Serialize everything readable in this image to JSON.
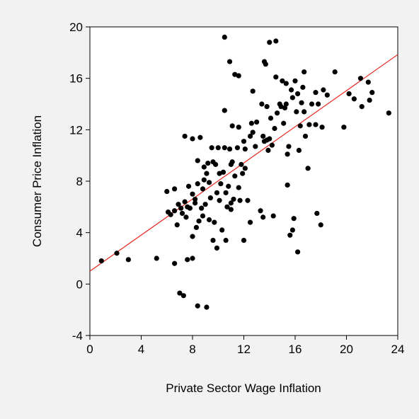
{
  "chart_data": {
    "type": "scatter",
    "title": "",
    "xlabel": "Private Sector Wage Inflation",
    "ylabel": "Consumer Price Inflation",
    "xlim": [
      0,
      24
    ],
    "ylim": [
      -4,
      20
    ],
    "xticks": [
      0,
      4,
      8,
      12,
      16,
      20,
      24
    ],
    "yticks": [
      -4,
      0,
      4,
      8,
      12,
      16,
      20
    ],
    "xtick_labels": [
      "0",
      "4",
      "8",
      "12",
      "16",
      "20",
      "24"
    ],
    "ytick_labels": [
      "-4",
      "0",
      "4",
      "8",
      "12",
      "16",
      "20"
    ],
    "grid": false,
    "legend": "none",
    "colors": {
      "points": "#000000",
      "fit_line": "#e8231c",
      "plot_bg": "#ffffff",
      "page_bg": "#f2f2f2"
    },
    "fit_line": {
      "x": [
        0,
        24
      ],
      "y": [
        1.0,
        17.85
      ]
    },
    "points": [
      {
        "x": 0.9,
        "y": 1.8
      },
      {
        "x": 2.1,
        "y": 2.4
      },
      {
        "x": 3.0,
        "y": 1.9
      },
      {
        "x": 5.2,
        "y": 2.0
      },
      {
        "x": 6.6,
        "y": 1.6
      },
      {
        "x": 7.0,
        "y": -0.7
      },
      {
        "x": 7.3,
        "y": -0.9
      },
      {
        "x": 7.6,
        "y": 1.9
      },
      {
        "x": 8.0,
        "y": 2.0
      },
      {
        "x": 8.4,
        "y": -1.7
      },
      {
        "x": 9.1,
        "y": -1.8
      },
      {
        "x": 9.6,
        "y": 3.4
      },
      {
        "x": 9.9,
        "y": 2.8
      },
      {
        "x": 10.6,
        "y": 3.4
      },
      {
        "x": 12.0,
        "y": 3.4
      },
      {
        "x": 16.2,
        "y": 2.5
      },
      {
        "x": 6.0,
        "y": 7.2
      },
      {
        "x": 6.1,
        "y": 5.6
      },
      {
        "x": 6.3,
        "y": 5.4
      },
      {
        "x": 6.6,
        "y": 5.7
      },
      {
        "x": 6.6,
        "y": 7.4
      },
      {
        "x": 6.8,
        "y": 4.6
      },
      {
        "x": 6.9,
        "y": 6.2
      },
      {
        "x": 7.1,
        "y": 5.9
      },
      {
        "x": 7.2,
        "y": 5.5
      },
      {
        "x": 7.4,
        "y": 6.4
      },
      {
        "x": 7.4,
        "y": 11.5
      },
      {
        "x": 7.5,
        "y": 5.2
      },
      {
        "x": 7.6,
        "y": 6.0
      },
      {
        "x": 7.7,
        "y": 7.6
      },
      {
        "x": 7.8,
        "y": 5.9
      },
      {
        "x": 8.0,
        "y": 7.0
      },
      {
        "x": 8.0,
        "y": 11.3
      },
      {
        "x": 8.0,
        "y": 3.7
      },
      {
        "x": 8.2,
        "y": 6.3
      },
      {
        "x": 8.2,
        "y": 6.6
      },
      {
        "x": 8.3,
        "y": 4.4
      },
      {
        "x": 8.4,
        "y": 7.8
      },
      {
        "x": 8.4,
        "y": 9.6
      },
      {
        "x": 8.5,
        "y": 4.9
      },
      {
        "x": 8.6,
        "y": 11.4
      },
      {
        "x": 8.7,
        "y": 5.9
      },
      {
        "x": 8.8,
        "y": 7.4
      },
      {
        "x": 8.8,
        "y": 5.3
      },
      {
        "x": 8.9,
        "y": 8.1
      },
      {
        "x": 8.9,
        "y": 9.1
      },
      {
        "x": 9.0,
        "y": 6.2
      },
      {
        "x": 9.1,
        "y": 8.6
      },
      {
        "x": 9.2,
        "y": 9.4
      },
      {
        "x": 9.3,
        "y": 5.0
      },
      {
        "x": 9.3,
        "y": 7.9
      },
      {
        "x": 9.4,
        "y": 6.7
      },
      {
        "x": 9.5,
        "y": 10.6
      },
      {
        "x": 9.6,
        "y": 9.5
      },
      {
        "x": 9.7,
        "y": 4.8
      },
      {
        "x": 9.8,
        "y": 9.3
      },
      {
        "x": 9.9,
        "y": 7.1
      },
      {
        "x": 10.0,
        "y": 10.6
      },
      {
        "x": 10.1,
        "y": 6.5
      },
      {
        "x": 10.1,
        "y": 8.6
      },
      {
        "x": 10.2,
        "y": 7.8
      },
      {
        "x": 10.3,
        "y": 4.2
      },
      {
        "x": 10.4,
        "y": 8.7
      },
      {
        "x": 10.5,
        "y": 10.6
      },
      {
        "x": 10.5,
        "y": 13.5
      },
      {
        "x": 10.6,
        "y": 7.1
      },
      {
        "x": 10.7,
        "y": 6.0
      },
      {
        "x": 10.8,
        "y": 7.6
      },
      {
        "x": 10.9,
        "y": 10.5
      },
      {
        "x": 11.0,
        "y": 6.3
      },
      {
        "x": 11.0,
        "y": 9.3
      },
      {
        "x": 11.0,
        "y": 5.8
      },
      {
        "x": 11.1,
        "y": 9.5
      },
      {
        "x": 11.1,
        "y": 12.3
      },
      {
        "x": 11.2,
        "y": 6.6
      },
      {
        "x": 11.3,
        "y": 8.4
      },
      {
        "x": 11.5,
        "y": 10.6
      },
      {
        "x": 11.6,
        "y": 12.2
      },
      {
        "x": 11.6,
        "y": 7.5
      },
      {
        "x": 11.7,
        "y": 6.5
      },
      {
        "x": 11.8,
        "y": 9.3
      },
      {
        "x": 11.9,
        "y": 8.6
      },
      {
        "x": 12.0,
        "y": 11.1
      },
      {
        "x": 12.1,
        "y": 9.0
      },
      {
        "x": 12.1,
        "y": 10.5
      },
      {
        "x": 12.3,
        "y": 6.5
      },
      {
        "x": 12.5,
        "y": 4.8
      },
      {
        "x": 12.5,
        "y": 11.5
      },
      {
        "x": 12.6,
        "y": 12.5
      },
      {
        "x": 12.7,
        "y": 11.8
      },
      {
        "x": 12.9,
        "y": 10.7
      },
      {
        "x": 13.0,
        "y": 12.6
      },
      {
        "x": 13.3,
        "y": 5.7
      },
      {
        "x": 13.5,
        "y": 5.2
      },
      {
        "x": 13.5,
        "y": 11.5
      },
      {
        "x": 13.6,
        "y": 17.3
      },
      {
        "x": 13.6,
        "y": 11.1
      },
      {
        "x": 13.8,
        "y": 11.2
      },
      {
        "x": 13.9,
        "y": 10.4
      },
      {
        "x": 14.0,
        "y": 11.3
      },
      {
        "x": 14.1,
        "y": 12.9
      },
      {
        "x": 14.2,
        "y": 10.8
      },
      {
        "x": 14.3,
        "y": 5.3
      },
      {
        "x": 14.4,
        "y": 12.1
      },
      {
        "x": 14.5,
        "y": 16.1
      },
      {
        "x": 14.6,
        "y": 13.3
      },
      {
        "x": 14.8,
        "y": 14.0
      },
      {
        "x": 15.0,
        "y": 15.8
      },
      {
        "x": 15.1,
        "y": 12.5
      },
      {
        "x": 15.2,
        "y": 13.7
      },
      {
        "x": 15.3,
        "y": 14.0
      },
      {
        "x": 15.4,
        "y": 7.7
      },
      {
        "x": 15.4,
        "y": 10.1
      },
      {
        "x": 15.5,
        "y": 10.7
      },
      {
        "x": 15.6,
        "y": 3.8
      },
      {
        "x": 15.7,
        "y": 15.1
      },
      {
        "x": 15.8,
        "y": 14.5
      },
      {
        "x": 15.8,
        "y": 4.2
      },
      {
        "x": 15.9,
        "y": 5.1
      },
      {
        "x": 16.0,
        "y": 15.8
      },
      {
        "x": 16.1,
        "y": 13.4
      },
      {
        "x": 16.2,
        "y": 14.8
      },
      {
        "x": 16.3,
        "y": 10.4
      },
      {
        "x": 16.4,
        "y": 12.3
      },
      {
        "x": 16.5,
        "y": 14.1
      },
      {
        "x": 16.6,
        "y": 15.3
      },
      {
        "x": 16.7,
        "y": 13.4
      },
      {
        "x": 16.7,
        "y": 16.5
      },
      {
        "x": 16.8,
        "y": 11.5
      },
      {
        "x": 17.0,
        "y": 9.0
      },
      {
        "x": 17.1,
        "y": 12.4
      },
      {
        "x": 17.3,
        "y": 14.0
      },
      {
        "x": 17.6,
        "y": 14.9
      },
      {
        "x": 17.6,
        "y": 12.4
      },
      {
        "x": 17.7,
        "y": 5.5
      },
      {
        "x": 17.8,
        "y": 14.0
      },
      {
        "x": 18.0,
        "y": 4.6
      },
      {
        "x": 18.1,
        "y": 12.2
      },
      {
        "x": 18.2,
        "y": 15.1
      },
      {
        "x": 18.5,
        "y": 14.7
      },
      {
        "x": 19.1,
        "y": 16.5
      },
      {
        "x": 19.8,
        "y": 12.2
      },
      {
        "x": 20.2,
        "y": 14.8
      },
      {
        "x": 20.6,
        "y": 14.4
      },
      {
        "x": 21.1,
        "y": 16.0
      },
      {
        "x": 21.2,
        "y": 13.8
      },
      {
        "x": 21.7,
        "y": 15.7
      },
      {
        "x": 21.8,
        "y": 14.3
      },
      {
        "x": 22.0,
        "y": 14.9
      },
      {
        "x": 23.3,
        "y": 13.3
      },
      {
        "x": 10.5,
        "y": 19.2
      },
      {
        "x": 10.9,
        "y": 17.3
      },
      {
        "x": 11.3,
        "y": 16.3
      },
      {
        "x": 11.6,
        "y": 16.2
      },
      {
        "x": 13.7,
        "y": 17.1
      },
      {
        "x": 14.0,
        "y": 18.8
      },
      {
        "x": 14.5,
        "y": 18.9
      },
      {
        "x": 12.7,
        "y": 15.0
      },
      {
        "x": 13.4,
        "y": 14.0
      },
      {
        "x": 13.8,
        "y": 13.8
      },
      {
        "x": 14.9,
        "y": 13.8
      },
      {
        "x": 15.3,
        "y": 15.6
      }
    ]
  }
}
